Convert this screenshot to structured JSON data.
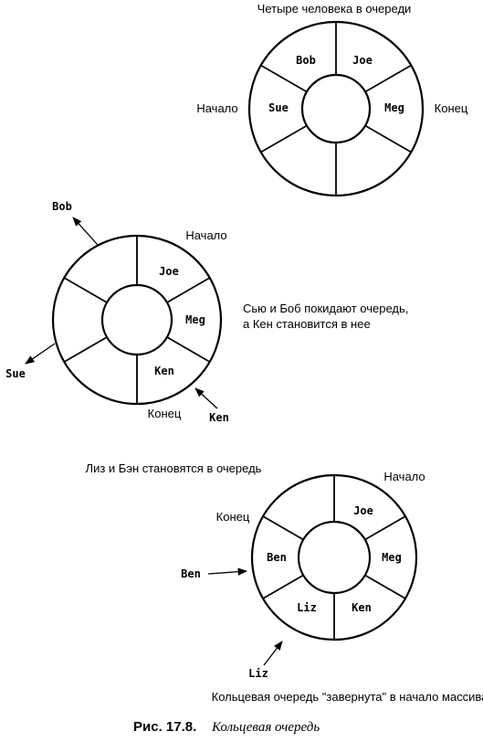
{
  "diagram1": {
    "title": "Четыре человека в очереди",
    "label_left": "Начало",
    "label_right": "Конец",
    "slots": [
      "Bob",
      "Joe",
      "Meg",
      "Sue"
    ]
  },
  "diagram2": {
    "label_start": "Начало",
    "label_end": "Конец",
    "description_line1": "Сью и Боб покидают очередь,",
    "description_line2": "а Кен становится в нее",
    "slots": [
      "Joe",
      "Meg",
      "Ken"
    ],
    "out_bob": "Bob",
    "out_sue": "Sue",
    "in_ken": "Ken"
  },
  "diagram3": {
    "title": "Лиз и Бэн становятся в очередь",
    "label_start": "Начало",
    "label_end": "Конец",
    "slots": [
      "Joe",
      "Meg",
      "Ken",
      "Liz",
      "Ben"
    ],
    "in_ben": "Ben",
    "in_liz": "Liz",
    "note": "Кольцевая очередь \"завернута\" в начало массива"
  },
  "caption": {
    "number": "Рис. 17.8.",
    "text": "Кольцевая очередь"
  }
}
